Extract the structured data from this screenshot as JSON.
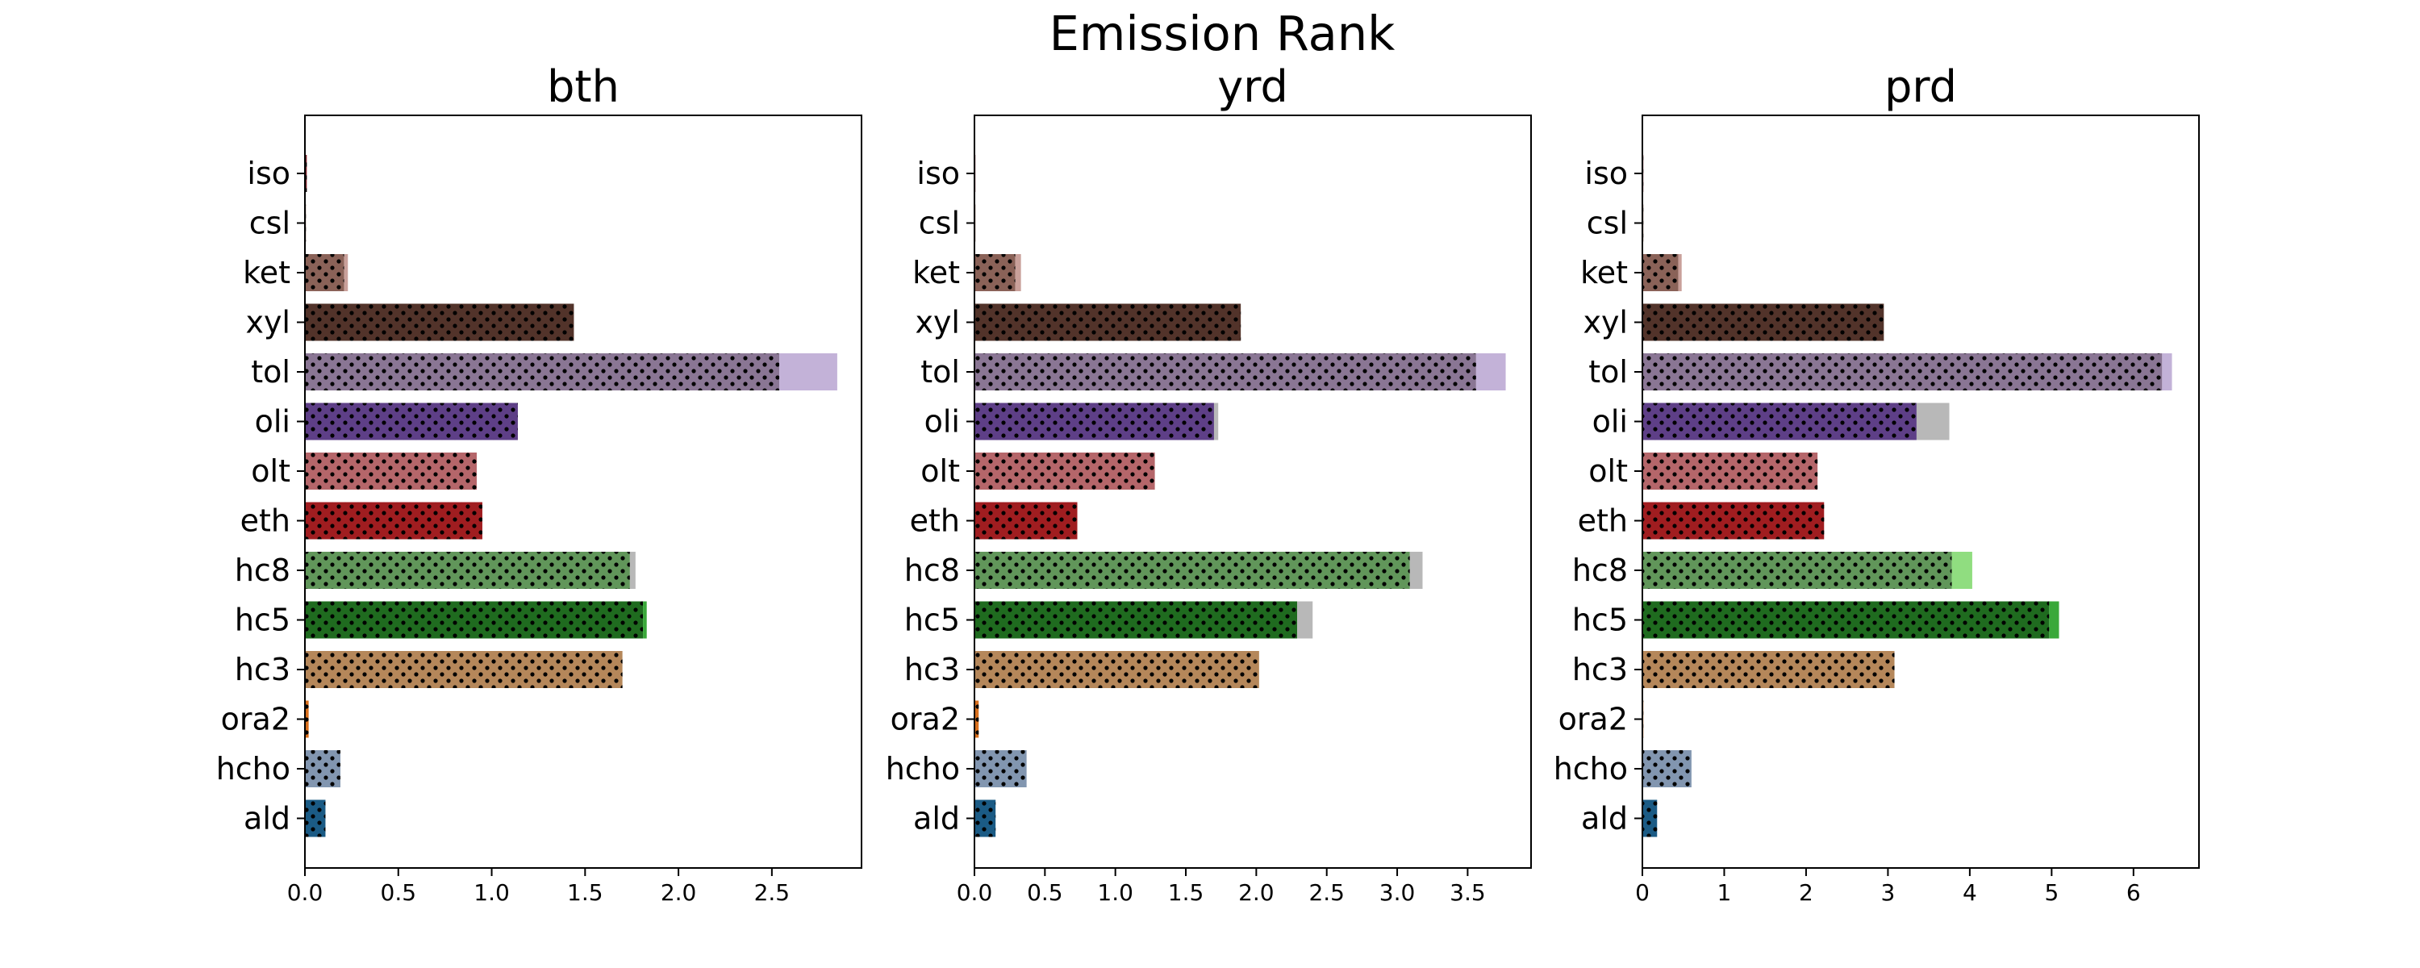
{
  "figure": {
    "title": "Emission Rank"
  },
  "chart_data": {
    "type": "bar",
    "orientation": "horizontal",
    "stacked": true,
    "title": "Emission Rank",
    "categories": [
      "iso",
      "csl",
      "ket",
      "xyl",
      "tol",
      "oli",
      "olt",
      "eth",
      "hc8",
      "hc5",
      "hc3",
      "ora2",
      "hcho",
      "ald"
    ],
    "category_colors": {
      "iso": "#7b1d28",
      "csl": "#6b3a2a",
      "ket": "#8a6258",
      "xyl": "#52332a",
      "tol": "#8a7694",
      "oli": "#5e3f87",
      "olt": "#b5666a",
      "eth": "#a01d20",
      "hc8": "#61965a",
      "hc5": "#1f6b1f",
      "hc3": "#b5875a",
      "ora2": "#d96f1c",
      "hcho": "#8296b0",
      "ald": "#1b5b85"
    },
    "pattern": "dots",
    "panels": [
      {
        "title": "bth",
        "xlim": [
          0,
          2.98
        ],
        "xticks": [
          "0.0",
          "0.5",
          "1.0",
          "1.5",
          "2.0",
          "2.5"
        ],
        "xtick_values": [
          0,
          0.5,
          1.0,
          1.5,
          2.0,
          2.5
        ],
        "series": [
          {
            "values": [
              0.01,
              0.005,
              0.21,
              1.44,
              2.54,
              1.14,
              0.92,
              0.95,
              1.74,
              1.81,
              1.7,
              0.02,
              0.19,
              0.11
            ]
          },
          {
            "values": [
              0.0,
              0.0,
              0.02,
              0.0,
              0.31,
              0.0,
              0.0,
              0.0,
              0.03,
              0.02,
              0.0,
              0.0,
              0.0,
              0.0
            ],
            "colors": {
              "ket": "#c9a09a",
              "tol": "#c3b2d8",
              "hc8": "#b8b8b8",
              "hc5": "#3aa83a"
            }
          }
        ]
      },
      {
        "title": "yrd",
        "xlim": [
          0,
          3.95
        ],
        "xticks": [
          "0.0",
          "0.5",
          "1.0",
          "1.5",
          "2.0",
          "2.5",
          "3.0",
          "3.5"
        ],
        "xtick_values": [
          0,
          0.5,
          1.0,
          1.5,
          2.0,
          2.5,
          3.0,
          3.5
        ],
        "series": [
          {
            "values": [
              0.005,
              0.005,
              0.29,
              1.89,
              3.56,
              1.7,
              1.28,
              0.73,
              3.09,
              2.29,
              2.02,
              0.03,
              0.37,
              0.15
            ]
          },
          {
            "values": [
              0.0,
              0.0,
              0.04,
              0.0,
              0.21,
              0.03,
              0.0,
              0.0,
              0.09,
              0.11,
              0.0,
              0.0,
              0.0,
              0.0
            ],
            "colors": {
              "ket": "#c9a09a",
              "tol": "#c3b2d8",
              "oli": "#b8b8b8",
              "hc8": "#b8b8b8",
              "hc5": "#b8b8b8"
            }
          }
        ]
      },
      {
        "title": "prd",
        "xlim": [
          0,
          6.8
        ],
        "xticks": [
          "0",
          "1",
          "2",
          "3",
          "4",
          "5",
          "6"
        ],
        "xtick_values": [
          0,
          1,
          2,
          3,
          4,
          5,
          6
        ],
        "series": [
          {
            "values": [
              0.01,
              0.005,
              0.44,
              2.95,
              6.35,
              3.35,
              2.14,
              2.22,
              3.78,
              4.97,
              3.08,
              0.01,
              0.6,
              0.18
            ]
          },
          {
            "values": [
              0.0,
              0.0,
              0.04,
              0.0,
              0.12,
              0.4,
              0.0,
              0.0,
              0.25,
              0.12,
              0.0,
              0.0,
              0.0,
              0.0
            ],
            "colors": {
              "ket": "#c9a09a",
              "tol": "#c3b2d8",
              "oli": "#b8b8b8",
              "hc8": "#90dd80",
              "hc5": "#3aa83a"
            }
          }
        ]
      }
    ]
  }
}
